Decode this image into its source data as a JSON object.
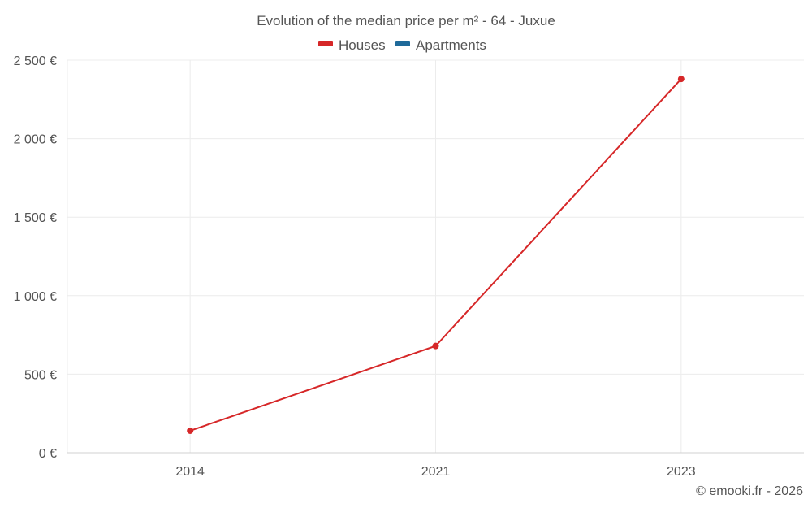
{
  "chart_data": {
    "type": "line",
    "title": "Evolution of the median price per m² - 64 - Juxue",
    "xlabel": "",
    "ylabel": "",
    "categories": [
      "2014",
      "2021",
      "2023"
    ],
    "ylim": [
      0,
      2500
    ],
    "y_ticks": [
      0,
      500,
      1000,
      1500,
      2000,
      2500
    ],
    "y_tick_labels": [
      "0 €",
      "500 €",
      "1 000 €",
      "1 500 €",
      "2 000 €",
      "2 500 €"
    ],
    "series": [
      {
        "name": "Houses",
        "color": "#d62728",
        "values": [
          140,
          680,
          2380
        ]
      },
      {
        "name": "Apartments",
        "color": "#1f6a9a",
        "values": [
          null,
          null,
          null
        ]
      }
    ],
    "grid": true,
    "legend_position": "top-center"
  },
  "credit": "© emooki.fr - 2026"
}
